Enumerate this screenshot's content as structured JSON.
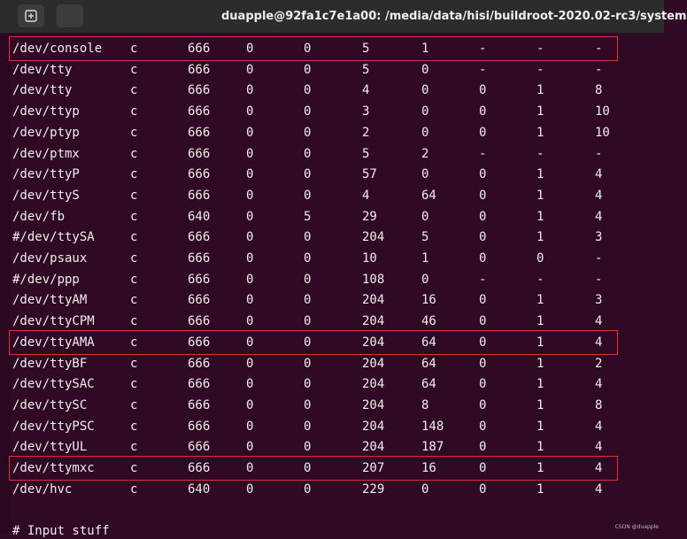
{
  "window": {
    "title": "duapple@92fa1c7e1a00: /media/data/hisi/buildroot-2020.02-rc3/system"
  },
  "terminal": {
    "rows": [
      [
        "/dev/console",
        "c",
        "666",
        "0",
        "0",
        "5",
        "1",
        "-",
        "-",
        "-"
      ],
      [
        "/dev/tty",
        "c",
        "666",
        "0",
        "0",
        "5",
        "0",
        "-",
        "-",
        "-"
      ],
      [
        "/dev/tty",
        "c",
        "666",
        "0",
        "0",
        "4",
        "0",
        "0",
        "1",
        "8"
      ],
      [
        "/dev/ttyp",
        "c",
        "666",
        "0",
        "0",
        "3",
        "0",
        "0",
        "1",
        "10"
      ],
      [
        "/dev/ptyp",
        "c",
        "666",
        "0",
        "0",
        "2",
        "0",
        "0",
        "1",
        "10"
      ],
      [
        "/dev/ptmx",
        "c",
        "666",
        "0",
        "0",
        "5",
        "2",
        "-",
        "-",
        "-"
      ],
      [
        "/dev/ttyP",
        "c",
        "666",
        "0",
        "0",
        "57",
        "0",
        "0",
        "1",
        "4"
      ],
      [
        "/dev/ttyS",
        "c",
        "666",
        "0",
        "0",
        "4",
        "64",
        "0",
        "1",
        "4"
      ],
      [
        "/dev/fb",
        "c",
        "640",
        "0",
        "5",
        "29",
        "0",
        "0",
        "1",
        "4"
      ],
      [
        "#/dev/ttySA",
        "c",
        "666",
        "0",
        "0",
        "204",
        "5",
        "0",
        "1",
        "3"
      ],
      [
        "/dev/psaux",
        "c",
        "666",
        "0",
        "0",
        "10",
        "1",
        "0",
        "0",
        "-"
      ],
      [
        "#/dev/ppp",
        "c",
        "666",
        "0",
        "0",
        "108",
        "0",
        "-",
        "-",
        "-"
      ],
      [
        "/dev/ttyAM",
        "c",
        "666",
        "0",
        "0",
        "204",
        "16",
        "0",
        "1",
        "3"
      ],
      [
        "/dev/ttyCPM",
        "c",
        "666",
        "0",
        "0",
        "204",
        "46",
        "0",
        "1",
        "4"
      ],
      [
        "/dev/ttyAMA",
        "c",
        "666",
        "0",
        "0",
        "204",
        "64",
        "0",
        "1",
        "4"
      ],
      [
        "/dev/ttyBF",
        "c",
        "666",
        "0",
        "0",
        "204",
        "64",
        "0",
        "1",
        "2"
      ],
      [
        "/dev/ttySAC",
        "c",
        "666",
        "0",
        "0",
        "204",
        "64",
        "0",
        "1",
        "4"
      ],
      [
        "/dev/ttySC",
        "c",
        "666",
        "0",
        "0",
        "204",
        "8",
        "0",
        "1",
        "8"
      ],
      [
        "/dev/ttyPSC",
        "c",
        "666",
        "0",
        "0",
        "204",
        "148",
        "0",
        "1",
        "4"
      ],
      [
        "/dev/ttyUL",
        "c",
        "666",
        "0",
        "0",
        "204",
        "187",
        "0",
        "1",
        "4"
      ],
      [
        "/dev/ttymxc",
        "c",
        "666",
        "0",
        "0",
        "207",
        "16",
        "0",
        "1",
        "4"
      ],
      [
        "/dev/hvc",
        "c",
        "640",
        "0",
        "0",
        "229",
        "0",
        "0",
        "1",
        "4"
      ]
    ],
    "highlighted_rows": [
      0,
      14,
      20
    ],
    "footer": "# Input stuff"
  },
  "watermark": "CSDN @duapple"
}
